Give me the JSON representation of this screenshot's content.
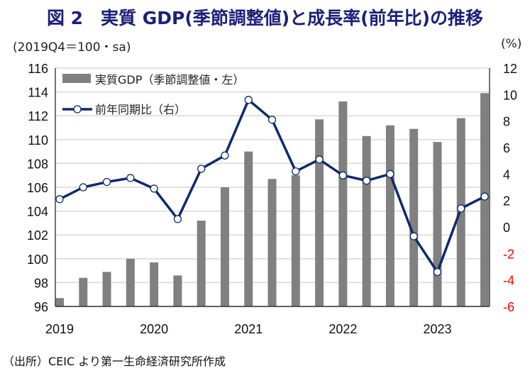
{
  "title": "図 2　実質 GDP(季節調整値)と成長率(前年比)の推移",
  "source": "（出所）CEIC より第一生命経済研究所作成",
  "chart_data": {
    "type": "bar+line",
    "left_unit": "(2019Q4＝100・sa)",
    "right_unit": "(%)",
    "categories": [
      "2019Q1",
      "2019Q2",
      "2019Q3",
      "2019Q4",
      "2020Q1",
      "2020Q2",
      "2020Q3",
      "2020Q4",
      "2021Q1",
      "2021Q2",
      "2021Q3",
      "2021Q4",
      "2022Q1",
      "2022Q2",
      "2022Q3",
      "2022Q4",
      "2023Q1",
      "2023Q2",
      "2023Q3"
    ],
    "x_tick_labels": [
      "2019",
      "2020",
      "2021",
      "2022",
      "2023"
    ],
    "left_ylim": [
      96,
      116
    ],
    "left_ticks": [
      "96",
      "98",
      "100",
      "102",
      "104",
      "106",
      "108",
      "110",
      "112",
      "114",
      "116"
    ],
    "right_ylim": [
      -6,
      12
    ],
    "right_ticks": [
      "-6",
      "-4",
      "-2",
      "0",
      "2",
      "4",
      "6",
      "8",
      "10",
      "12"
    ],
    "negative_tick_color": "#ff0000",
    "grid": true,
    "legend_placement": "top-left",
    "series": [
      {
        "name": "実質GDP（季節調整値・左）",
        "type": "bar",
        "axis": "left",
        "color": "#808080",
        "values": [
          96.7,
          98.4,
          98.9,
          100.0,
          99.7,
          98.6,
          103.2,
          106.0,
          109.0,
          106.7,
          107.0,
          111.7,
          113.2,
          110.3,
          111.2,
          110.9,
          109.8,
          111.8,
          113.9
        ]
      },
      {
        "name": "前年同期比（右）",
        "type": "line",
        "axis": "right",
        "color": "#0d2a6b",
        "values": [
          2.1,
          3.0,
          3.4,
          3.7,
          2.9,
          0.6,
          4.4,
          5.4,
          9.6,
          8.1,
          4.2,
          5.1,
          3.9,
          3.5,
          4.0,
          -0.7,
          -3.4,
          1.4,
          2.3
        ]
      }
    ]
  }
}
